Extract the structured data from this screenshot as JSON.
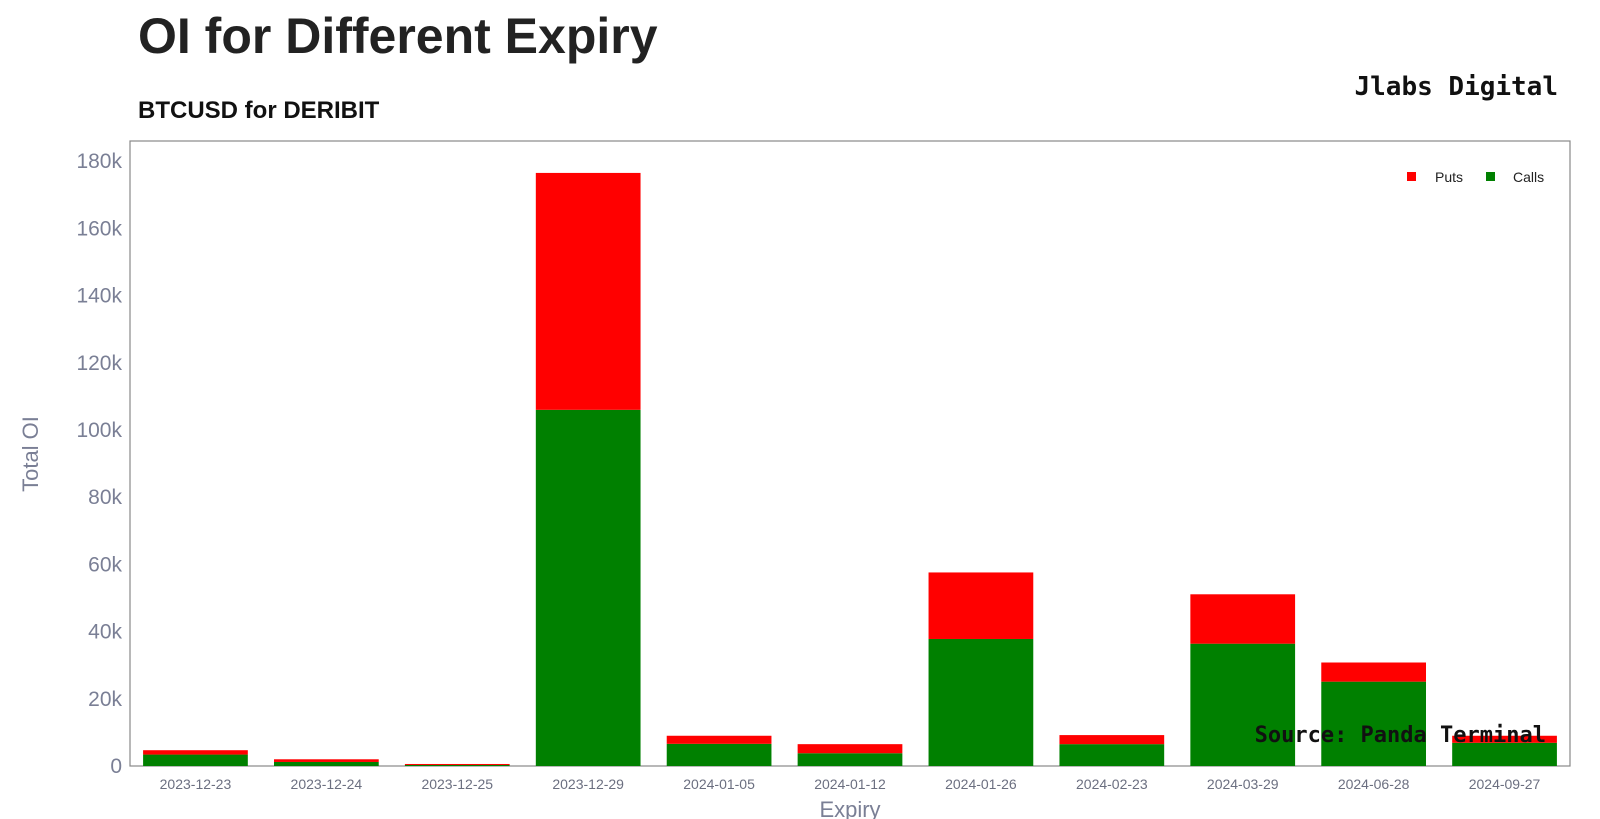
{
  "header": {
    "title": "OI for Different Expiry",
    "subtitle": "BTCUSD for DERIBIT",
    "brand": "Jlabs Digital"
  },
  "footer": {
    "source": "Source: Panda Terminal"
  },
  "colors": {
    "puts": "#ff0000",
    "calls": "#008000",
    "axis_text": "#7a7f95",
    "frame": "#888888"
  },
  "chart_data": {
    "type": "bar",
    "stacked": true,
    "xlabel": "Expiry",
    "ylabel": "Total OI",
    "ylim": [
      0,
      186000
    ],
    "yticks": [
      0,
      20000,
      40000,
      60000,
      80000,
      100000,
      120000,
      140000,
      160000,
      180000
    ],
    "ytick_labels": [
      "0",
      "20k",
      "40k",
      "60k",
      "80k",
      "100k",
      "120k",
      "140k",
      "160k",
      "180k"
    ],
    "categories": [
      "2023-12-23",
      "2023-12-24",
      "2023-12-25",
      "2023-12-29",
      "2024-01-05",
      "2024-01-12",
      "2024-01-26",
      "2024-02-23",
      "2024-03-29",
      "2024-06-28",
      "2024-09-27"
    ],
    "series": [
      {
        "name": "Calls",
        "color": "#008000",
        "values": [
          3400,
          1200,
          300,
          106000,
          6600,
          3800,
          37800,
          6500,
          36400,
          25100,
          6900
        ]
      },
      {
        "name": "Puts",
        "color": "#ff0000",
        "values": [
          1300,
          800,
          300,
          70500,
          2400,
          2700,
          19800,
          2700,
          14700,
          5700,
          2100
        ]
      }
    ],
    "legend": {
      "position": "top-right",
      "entries": [
        "Puts",
        "Calls"
      ]
    },
    "grid": false
  }
}
